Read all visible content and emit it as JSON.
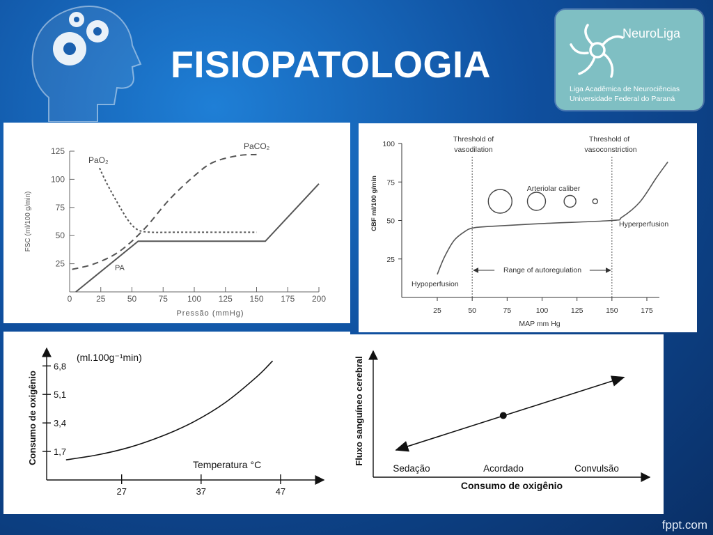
{
  "slide": {
    "title": "FISIOPATOLOGIA",
    "footer": "fppt.com",
    "logo": {
      "name": "NeuroLiga",
      "subtitle1": "Liga Acadêmica de Neurociências",
      "subtitle2": "Universidade Federal do Paraná"
    }
  },
  "chart_data": [
    {
      "type": "line",
      "title": "",
      "xlabel": "Pressão (mmHg)",
      "ylabel": "FSC (ml/100 g/min)",
      "xlim": [
        0,
        200
      ],
      "ylim": [
        0,
        125
      ],
      "xticks": [
        "0",
        "25",
        "50",
        "75",
        "100",
        "125",
        "150",
        "175",
        "200"
      ],
      "yticks": [
        "25",
        "50",
        "75",
        "100",
        "125"
      ],
      "series": [
        {
          "name": "PA",
          "style": "solid",
          "x": [
            5,
            55,
            157,
            200
          ],
          "y": [
            0,
            45,
            45,
            96
          ]
        },
        {
          "name": "PaO₂",
          "style": "dotted",
          "x": [
            24,
            30,
            40,
            48,
            55,
            65,
            90,
            150
          ],
          "y": [
            110,
            96,
            76,
            62,
            55,
            53,
            53,
            53
          ]
        },
        {
          "name": "PaCO₂",
          "style": "dashed",
          "x": [
            2,
            20,
            40,
            60,
            80,
            100,
            115,
            135,
            150
          ],
          "y": [
            20,
            25,
            36,
            56,
            82,
            103,
            115,
            121,
            122
          ]
        }
      ]
    },
    {
      "type": "line",
      "title": "",
      "xlabel": "MAP mm Hg",
      "ylabel": "CBF ml/100 g/min",
      "xlim": [
        25,
        190
      ],
      "ylim": [
        0,
        100
      ],
      "xticks": [
        "25",
        "50",
        "75",
        "100",
        "125",
        "150",
        "175"
      ],
      "yticks": [
        "25",
        "50",
        "75",
        "100"
      ],
      "annotations": {
        "vasodilation": [
          "Threshold of",
          "vasodilation"
        ],
        "vasoconstriction": [
          "Threshold of",
          "vasoconstriction"
        ],
        "caliber": "Arteriolar caliber",
        "range": "Range of autoregulation",
        "hypo": "Hypoperfusion",
        "hyper": "Hyperperfusion"
      },
      "thresholds": [
        50,
        150
      ],
      "caliber_circles": [
        70,
        96,
        120,
        138
      ],
      "series": [
        {
          "name": "",
          "x": [
            25,
            30,
            37,
            45,
            50,
            60,
            100,
            150,
            157,
            170,
            182,
            190
          ],
          "y": [
            15,
            26,
            37,
            43,
            45,
            46,
            48,
            50,
            52,
            62,
            78,
            88
          ]
        }
      ]
    },
    {
      "type": "line",
      "title": "",
      "unit_label": "(ml.100g⁻¹min)",
      "xlabel": "Temperatura °C",
      "ylabel": "Consumo de oxigênio",
      "xlim": [
        18,
        52
      ],
      "ylim": [
        0,
        7.6
      ],
      "xticks": [
        "27",
        "37",
        "47"
      ],
      "yticks": [
        "1,7",
        "3,4",
        "5,1",
        "6,8"
      ],
      "series": [
        {
          "name": "",
          "x": [
            20,
            24,
            28,
            32,
            36,
            40,
            44,
            46
          ],
          "y": [
            1.2,
            1.5,
            1.95,
            2.6,
            3.45,
            4.6,
            6.15,
            7.1
          ]
        }
      ]
    },
    {
      "type": "line",
      "title": "",
      "xlabel": "Consumo de oxigênio",
      "ylabel": "Fluxo sanguíneo cerebral",
      "categories": [
        "Sedação",
        "Acordado",
        "Convulsão"
      ],
      "xlim": [
        0,
        10
      ],
      "ylim": [
        0,
        10
      ],
      "series": [
        {
          "name": "",
          "x": [
            0.8,
            9.3
          ],
          "y": [
            2.2,
            8.1
          ]
        }
      ],
      "marker": {
        "label": "Acordado",
        "x": 4.8,
        "y": 5.0
      }
    }
  ]
}
